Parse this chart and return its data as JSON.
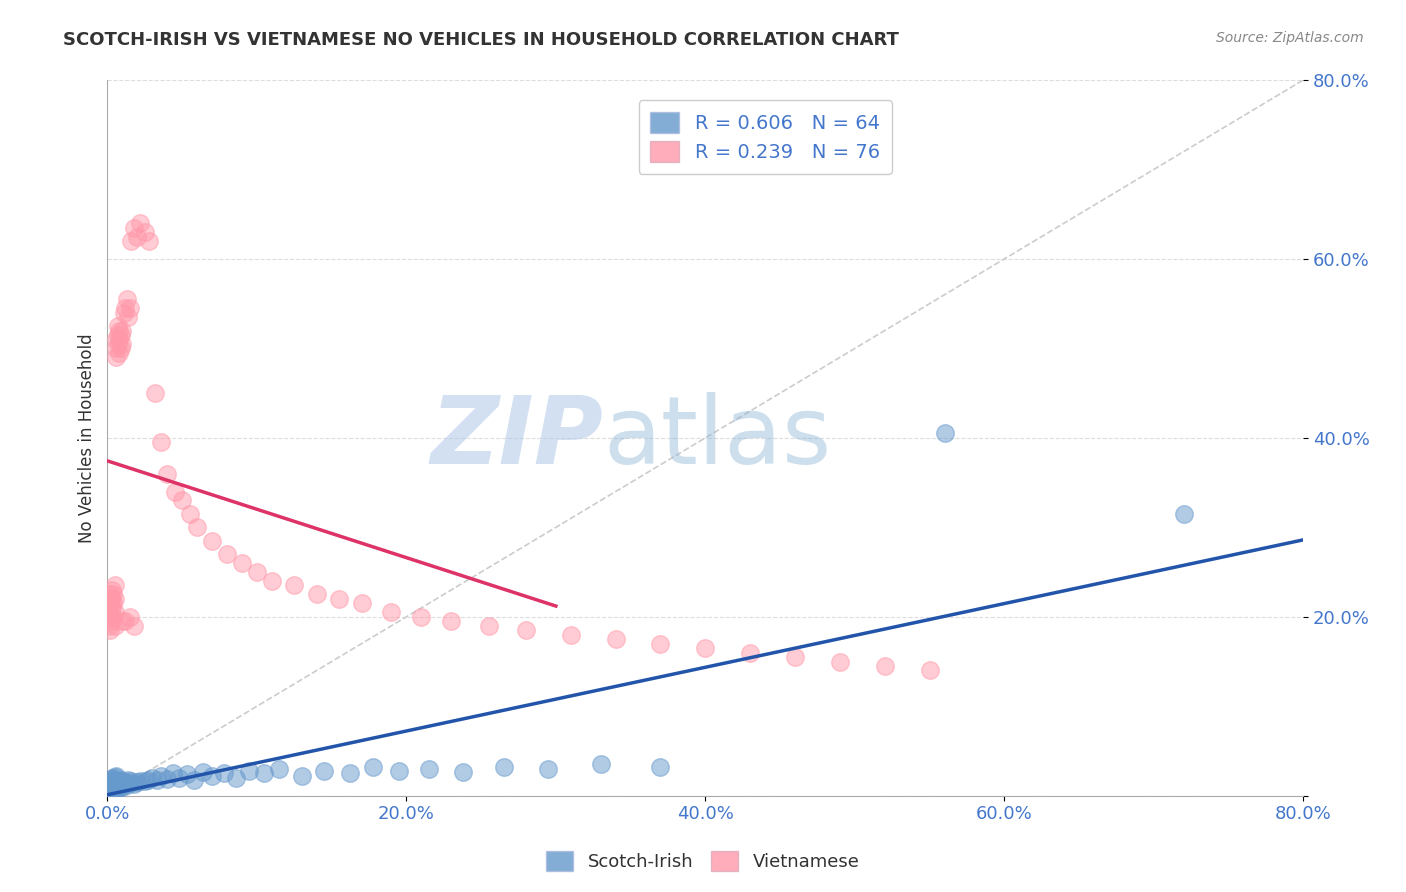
{
  "title": "SCOTCH-IRISH VS VIETNAMESE NO VEHICLES IN HOUSEHOLD CORRELATION CHART",
  "source": "Source: ZipAtlas.com",
  "ylabel": "No Vehicles in Household",
  "watermark_zip": "ZIP",
  "watermark_atlas": "atlas",
  "xlim": [
    0,
    0.8
  ],
  "ylim": [
    0,
    0.8
  ],
  "xtick_positions": [
    0.0,
    0.2,
    0.4,
    0.6,
    0.8
  ],
  "ytick_positions": [
    0.0,
    0.2,
    0.4,
    0.6,
    0.8
  ],
  "scotch_irish_color": "#6699cc",
  "scotch_irish_line_color": "#2255aa",
  "vietnamese_color": "#ff99aa",
  "vietnamese_line_color": "#dd3366",
  "scotch_irish_R": 0.606,
  "scotch_irish_N": 64,
  "vietnamese_R": 0.239,
  "vietnamese_N": 76,
  "diag_color": "#cccccc",
  "grid_color": "#dddddd",
  "tick_color": "#4477cc",
  "title_color": "#333333",
  "ylabel_color": "#333333",
  "source_color": "#888888",
  "si_x": [
    0.001,
    0.001,
    0.002,
    0.002,
    0.002,
    0.003,
    0.003,
    0.003,
    0.004,
    0.004,
    0.004,
    0.005,
    0.005,
    0.005,
    0.006,
    0.006,
    0.006,
    0.007,
    0.007,
    0.008,
    0.008,
    0.009,
    0.009,
    0.01,
    0.01,
    0.011,
    0.012,
    0.013,
    0.014,
    0.015,
    0.016,
    0.018,
    0.02,
    0.022,
    0.025,
    0.027,
    0.03,
    0.033,
    0.036,
    0.04,
    0.044,
    0.048,
    0.053,
    0.058,
    0.064,
    0.07,
    0.078,
    0.086,
    0.095,
    0.105,
    0.115,
    0.13,
    0.145,
    0.162,
    0.178,
    0.195,
    0.215,
    0.238,
    0.265,
    0.295,
    0.33,
    0.37,
    0.56,
    0.72
  ],
  "si_y": [
    0.008,
    0.015,
    0.005,
    0.012,
    0.018,
    0.007,
    0.014,
    0.02,
    0.006,
    0.013,
    0.019,
    0.008,
    0.015,
    0.021,
    0.007,
    0.014,
    0.022,
    0.01,
    0.017,
    0.009,
    0.016,
    0.011,
    0.018,
    0.01,
    0.017,
    0.013,
    0.015,
    0.012,
    0.018,
    0.014,
    0.016,
    0.013,
    0.015,
    0.017,
    0.016,
    0.018,
    0.02,
    0.018,
    0.022,
    0.019,
    0.025,
    0.02,
    0.024,
    0.018,
    0.027,
    0.022,
    0.025,
    0.02,
    0.028,
    0.025,
    0.03,
    0.022,
    0.028,
    0.025,
    0.032,
    0.028,
    0.03,
    0.027,
    0.032,
    0.03,
    0.035,
    0.032,
    0.405,
    0.315
  ],
  "vn_x": [
    0.001,
    0.001,
    0.001,
    0.002,
    0.002,
    0.002,
    0.002,
    0.003,
    0.003,
    0.003,
    0.003,
    0.004,
    0.004,
    0.004,
    0.005,
    0.005,
    0.005,
    0.005,
    0.006,
    0.006,
    0.006,
    0.007,
    0.007,
    0.007,
    0.008,
    0.008,
    0.008,
    0.009,
    0.009,
    0.01,
    0.01,
    0.011,
    0.012,
    0.013,
    0.014,
    0.015,
    0.016,
    0.018,
    0.02,
    0.022,
    0.025,
    0.028,
    0.032,
    0.036,
    0.04,
    0.045,
    0.05,
    0.055,
    0.06,
    0.07,
    0.08,
    0.09,
    0.1,
    0.11,
    0.125,
    0.14,
    0.155,
    0.17,
    0.19,
    0.21,
    0.23,
    0.255,
    0.28,
    0.31,
    0.34,
    0.37,
    0.4,
    0.43,
    0.46,
    0.49,
    0.52,
    0.55,
    0.01,
    0.012,
    0.015,
    0.018
  ],
  "vn_y": [
    0.19,
    0.205,
    0.22,
    0.185,
    0.2,
    0.215,
    0.225,
    0.195,
    0.21,
    0.22,
    0.23,
    0.2,
    0.215,
    0.225,
    0.19,
    0.205,
    0.22,
    0.235,
    0.5,
    0.51,
    0.49,
    0.505,
    0.515,
    0.525,
    0.495,
    0.51,
    0.52,
    0.5,
    0.515,
    0.505,
    0.52,
    0.54,
    0.545,
    0.555,
    0.535,
    0.545,
    0.62,
    0.635,
    0.625,
    0.64,
    0.63,
    0.62,
    0.45,
    0.395,
    0.36,
    0.34,
    0.33,
    0.315,
    0.3,
    0.285,
    0.27,
    0.26,
    0.25,
    0.24,
    0.235,
    0.225,
    0.22,
    0.215,
    0.205,
    0.2,
    0.195,
    0.19,
    0.185,
    0.18,
    0.175,
    0.17,
    0.165,
    0.16,
    0.155,
    0.15,
    0.145,
    0.14,
    0.195,
    0.195,
    0.2,
    0.19
  ]
}
